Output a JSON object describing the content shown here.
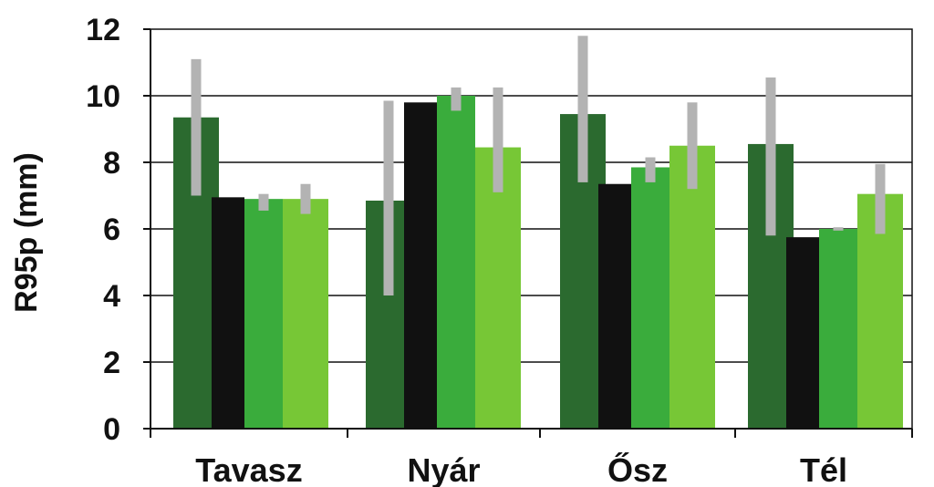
{
  "chart_data": {
    "type": "bar",
    "ylabel": "R95p (mm)",
    "xlabel": "",
    "title": "",
    "ylim": [
      0,
      12
    ],
    "yticks": [
      0,
      2,
      4,
      6,
      8,
      10,
      12
    ],
    "grid": true,
    "legend": "none",
    "categories": [
      "Tavasz",
      "Nyár",
      "Ősz",
      "Tél"
    ],
    "series": [
      {
        "color": "#2b6a2f",
        "values": [
          9.35,
          6.85,
          9.45,
          8.55
        ],
        "range": [
          [
            7.0,
            11.1
          ],
          [
            4.0,
            9.85
          ],
          [
            7.4,
            11.8
          ],
          [
            5.8,
            10.55
          ]
        ]
      },
      {
        "color": "#111111",
        "values": [
          6.95,
          9.8,
          7.35,
          5.75
        ],
        "range": null
      },
      {
        "color": "#3aac3c",
        "values": [
          6.9,
          10.0,
          7.85,
          6.0
        ],
        "range": [
          [
            6.55,
            7.05
          ],
          [
            9.55,
            10.25
          ],
          [
            7.4,
            8.15
          ],
          [
            5.95,
            6.05
          ]
        ]
      },
      {
        "color": "#77c736",
        "values": [
          6.9,
          8.45,
          8.5,
          7.05
        ],
        "range": [
          [
            6.45,
            7.35
          ],
          [
            7.1,
            10.25
          ],
          [
            7.2,
            9.8
          ],
          [
            5.85,
            7.95
          ]
        ]
      }
    ],
    "range_color": "#b3b3b3"
  }
}
